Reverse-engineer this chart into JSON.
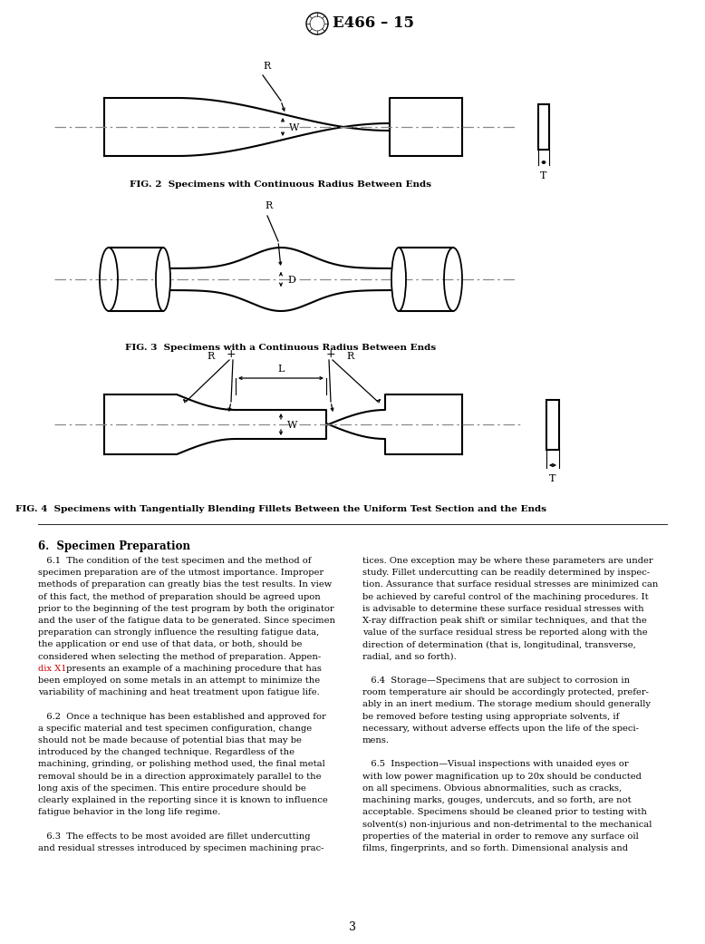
{
  "title": "E466 – 15",
  "fig2_caption": "FIG. 2  Specimens with Continuous Radius Between Ends",
  "fig3_caption": "FIG. 3  Specimens with a Continuous Radius Between Ends",
  "fig4_caption": "FIG. 4  Specimens with Tangentially Blending Fillets Between the Uniform Test Section and the Ends",
  "section_title": "6.  Specimen Preparation",
  "body_text_left": [
    "   6.1  The condition of the test specimen and the method of",
    "specimen preparation are of the utmost importance. Improper",
    "methods of preparation can greatly bias the test results. In view",
    "of this fact, the method of preparation should be agreed upon",
    "prior to the beginning of the test program by both the originator",
    "and the user of the fatigue data to be generated. Since specimen",
    "preparation can strongly influence the resulting fatigue data,",
    "the application or end use of that data, or both, should be",
    "considered when selecting the method of preparation. Appen-",
    "dix X1 presents an example of a machining procedure that has",
    "been employed on some metals in an attempt to minimize the",
    "variability of machining and heat treatment upon fatigue life.",
    "",
    "   6.2  Once a technique has been established and approved for",
    "a specific material and test specimen configuration, change",
    "should not be made because of potential bias that may be",
    "introduced by the changed technique. Regardless of the",
    "machining, grinding, or polishing method used, the final metal",
    "removal should be in a direction approximately parallel to the",
    "long axis of the specimen. This entire procedure should be",
    "clearly explained in the reporting since it is known to influence",
    "fatigue behavior in the long life regime.",
    "",
    "   6.3  The effects to be most avoided are fillet undercutting",
    "and residual stresses introduced by specimen machining prac-"
  ],
  "body_text_right": [
    "tices. One exception may be where these parameters are under",
    "study. Fillet undercutting can be readily determined by inspec-",
    "tion. Assurance that surface residual stresses are minimized can",
    "be achieved by careful control of the machining procedures. It",
    "is advisable to determine these surface residual stresses with",
    "X-ray diffraction peak shift or similar techniques, and that the",
    "value of the surface residual stress be reported along with the",
    "direction of determination (that is, longitudinal, transverse,",
    "radial, and so forth).",
    "",
    "   6.4  Storage—Specimens that are subject to corrosion in",
    "room temperature air should be accordingly protected, prefer-",
    "ably in an inert medium. The storage medium should generally",
    "be removed before testing using appropriate solvents, if",
    "necessary, without adverse effects upon the life of the speci-",
    "mens.",
    "",
    "   6.5  Inspection—Visual inspections with unaided eyes or",
    "with low power magnification up to 20x should be conducted",
    "on all specimens. Obvious abnormalities, such as cracks,",
    "machining marks, gouges, undercuts, and so forth, are not",
    "acceptable. Specimens should be cleaned prior to testing with",
    "solvent(s) non-injurious and non-detrimental to the mechanical",
    "properties of the material in order to remove any surface oil",
    "films, fingerprints, and so forth. Dimensional analysis and"
  ],
  "page_number": "3",
  "highlight_color": "#cc0000",
  "bg_color": "#ffffff",
  "text_color": "#000000",
  "line_color": "#000000",
  "dash_color": "#888888"
}
